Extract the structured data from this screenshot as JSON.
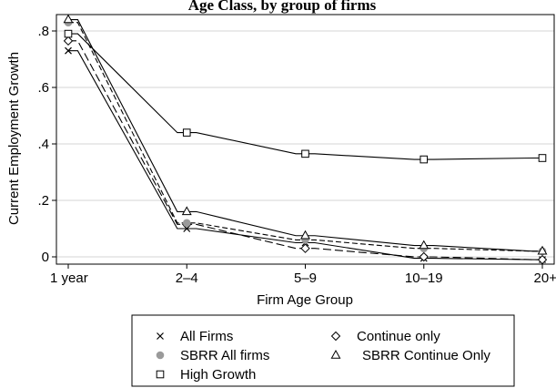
{
  "chart_data": {
    "type": "line",
    "title": "Age Class, by group of firms",
    "xlabel": "Firm Age Group",
    "ylabel": "Current Employment Growth",
    "categories": [
      "1 year",
      "2–4",
      "5–9",
      "10–19",
      "20+"
    ],
    "ylim": [
      -0.02,
      0.87
    ],
    "yticks": [
      0,
      0.2,
      0.4,
      0.6,
      0.8
    ],
    "ytick_labels": [
      "0",
      ".2",
      ".4",
      ".6",
      ".8"
    ],
    "grid": true,
    "legend_position": "bottom",
    "series": [
      {
        "name": "All Firms",
        "marker": "x",
        "values": [
          0.73,
          0.1,
          0.05,
          -0.005,
          -0.01
        ]
      },
      {
        "name": "Continue only",
        "marker": "diamond",
        "values": [
          0.765,
          0.115,
          0.03,
          0.0,
          -0.01
        ]
      },
      {
        "name": "SBRR All firms",
        "marker": "filled-circle",
        "values": [
          0.83,
          0.12,
          0.06,
          0.03,
          0.02
        ]
      },
      {
        "name": "SBRR Continue Only",
        "marker": "triangle",
        "values": [
          0.84,
          0.16,
          0.075,
          0.04,
          0.02
        ]
      },
      {
        "name": "High Growth",
        "marker": "square",
        "values": [
          0.79,
          0.44,
          0.365,
          0.345,
          0.35
        ]
      }
    ]
  }
}
